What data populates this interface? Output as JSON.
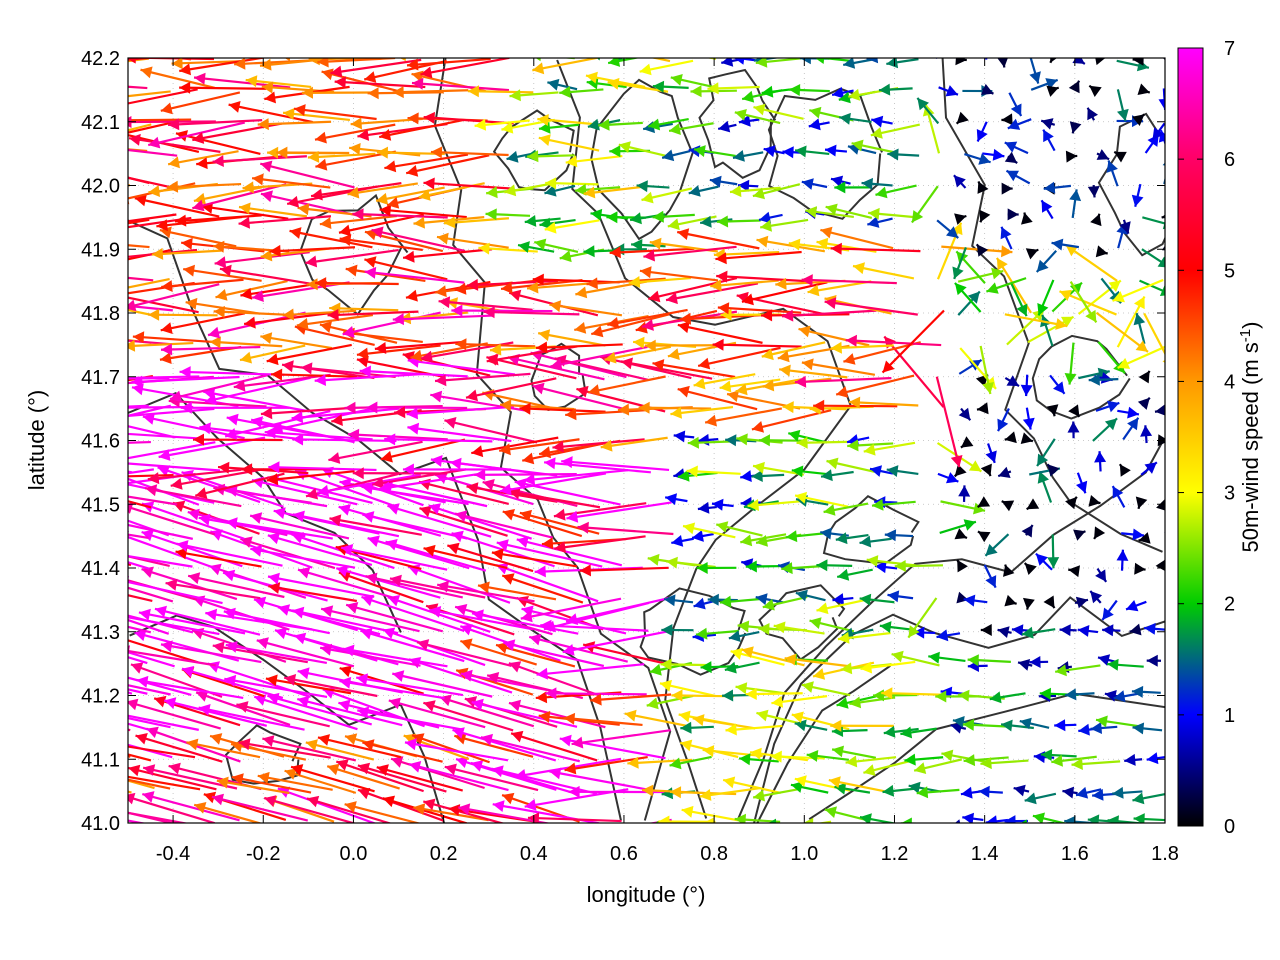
{
  "chart_data": {
    "type": "vector-field",
    "xlabel": "longitude (°)",
    "ylabel": "latitude (°)",
    "xlim": [
      -0.5,
      1.8
    ],
    "ylim": [
      41.0,
      42.2
    ],
    "xticks": [
      "-0.4",
      "-0.2",
      "0.0",
      "0.2",
      "0.4",
      "0.6",
      "0.8",
      "1.0",
      "1.2",
      "1.4",
      "1.6",
      "1.8"
    ],
    "yticks": [
      "41.0",
      "41.1",
      "41.2",
      "41.3",
      "41.4",
      "41.5",
      "41.6",
      "41.7",
      "41.8",
      "41.9",
      "42.0",
      "42.1",
      "42.2"
    ],
    "grid": true,
    "colorbar": {
      "label": "50m-wind speed (m s-1)",
      "range": [
        0,
        7
      ],
      "ticks": [
        "0",
        "1",
        "2",
        "3",
        "4",
        "5",
        "6",
        "7"
      ],
      "colors": [
        "#000000",
        "#0000ff",
        "#00cc00",
        "#ffff00",
        "#ff9900",
        "#ff0000",
        "#ff00ff"
      ]
    },
    "wind_field_regions": [
      {
        "region": "west, lat 41.1-41.7",
        "speed": 7,
        "direction": "westward"
      },
      {
        "region": "west, lat 41.7-42.2",
        "speed": 5.5,
        "direction": "westward"
      },
      {
        "region": "east of 1.4, south of 41.25",
        "speed": 1.8,
        "direction": "westward"
      },
      {
        "region": "east of 1.4, north of 41.4",
        "speed": 0.6,
        "direction": "variable"
      }
    ]
  }
}
